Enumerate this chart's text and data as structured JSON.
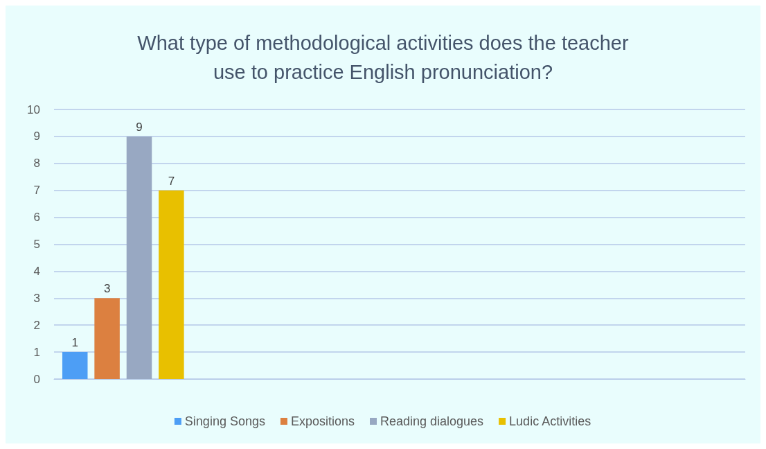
{
  "chart_data": {
    "type": "bar",
    "title": "What type of methodological activities does the teacher\nuse to practice English pronunciation?",
    "categories": [
      null,
      null,
      null,
      null,
      null
    ],
    "series": [
      {
        "name": "Singing Songs",
        "color": "#4d9ef5",
        "values": [
          1,
          null,
          null,
          null,
          null
        ]
      },
      {
        "name": "Expositions",
        "color": "#dc8040",
        "values": [
          3,
          null,
          null,
          null,
          null
        ]
      },
      {
        "name": "Reading dialogues",
        "color": "#98a8c2",
        "values": [
          9,
          null,
          null,
          null,
          null
        ]
      },
      {
        "name": "Ludic Activities",
        "color": "#e8c000",
        "values": [
          7,
          null,
          null,
          null,
          null
        ]
      }
    ],
    "ylim": [
      0,
      10
    ],
    "yticks": [
      0,
      1,
      2,
      3,
      4,
      5,
      6,
      7,
      8,
      9,
      10
    ],
    "grid": "y",
    "legend": "bottom",
    "data_labels": true
  }
}
